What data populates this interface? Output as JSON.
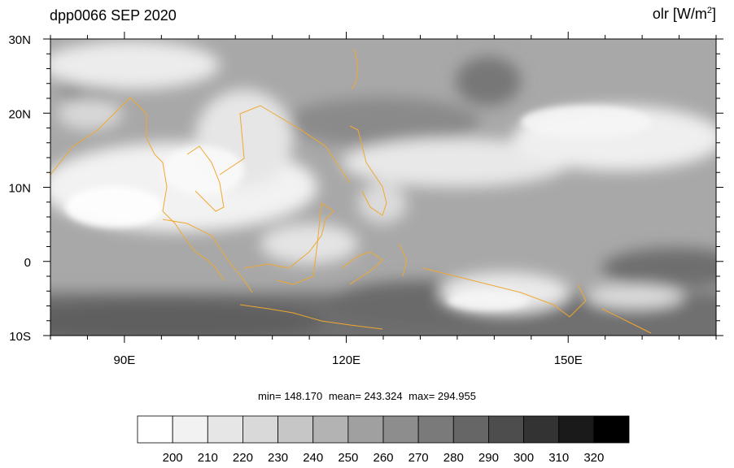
{
  "header": {
    "title_left": "dpp0066 SEP 2020",
    "var_name": "olr [W/m",
    "var_sup": "2",
    "var_close": "]"
  },
  "map": {
    "lon_range": [
      80,
      170
    ],
    "lat_range": [
      -10,
      30
    ],
    "lat_ticks": [
      {
        "value": 30,
        "label": "30N"
      },
      {
        "value": 20,
        "label": "20N"
      },
      {
        "value": 10,
        "label": "10N"
      },
      {
        "value": 0,
        "label": "0"
      },
      {
        "value": -10,
        "label": "10S"
      }
    ],
    "lon_ticks": [
      {
        "value": 90,
        "label": "90E"
      },
      {
        "value": 120,
        "label": "120E"
      },
      {
        "value": 150,
        "label": "150E"
      }
    ],
    "coastline_color": "#f0a830"
  },
  "stats": {
    "min": "min= 148.170",
    "mean": "mean= 243.324",
    "max": "max= 294.955"
  },
  "colorbar": {
    "labels": [
      "200",
      "210",
      "220",
      "230",
      "240",
      "250",
      "260",
      "270",
      "280",
      "290",
      "300",
      "310",
      "320"
    ],
    "colors": [
      "#ffffff",
      "#f2f2f2",
      "#e6e6e6",
      "#d9d9d9",
      "#c6c6c6",
      "#b3b3b3",
      "#a0a0a0",
      "#8d8d8d",
      "#7a7a7a",
      "#666666",
      "#4d4d4d",
      "#333333",
      "#1a1a1a",
      "#000000"
    ]
  }
}
